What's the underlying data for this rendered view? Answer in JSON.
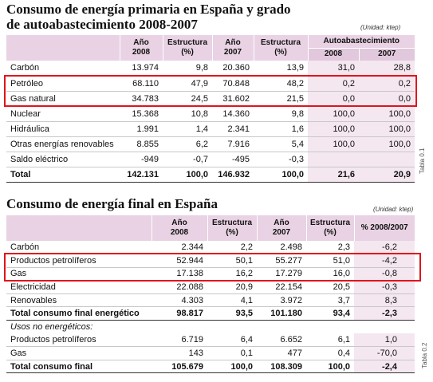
{
  "table1": {
    "title": "Consumo de energía primaria en España y grado\nde autoabastecimiento 2008-2007",
    "unit": "(Unidad: ktep)",
    "caption": "Tabla 0.1",
    "headers": [
      "Año\n2008",
      "Estructura\n(%)",
      "Año\n2007",
      "Estructura\n(%)"
    ],
    "group_header": "Autoabastecimiento",
    "group_subheaders": [
      "2008",
      "2007"
    ],
    "rows": [
      {
        "label": "Carbón",
        "cells": [
          "13.974",
          "9,8",
          "20.360",
          "13,9",
          "31,0",
          "28,8"
        ]
      },
      {
        "label": "Petróleo",
        "cells": [
          "68.110",
          "47,9",
          "70.848",
          "48,2",
          "0,2",
          "0,2"
        ]
      },
      {
        "label": "Gas natural",
        "cells": [
          "34.783",
          "24,5",
          "31.602",
          "21,5",
          "0,0",
          "0,0"
        ]
      },
      {
        "label": "Nuclear",
        "cells": [
          "15.368",
          "10,8",
          "14.360",
          "9,8",
          "100,0",
          "100,0"
        ]
      },
      {
        "label": "Hidráulica",
        "cells": [
          "1.991",
          "1,4",
          "2.341",
          "1,6",
          "100,0",
          "100,0"
        ]
      },
      {
        "label": "Otras energías renovables",
        "cells": [
          "8.855",
          "6,2",
          "7.916",
          "5,4",
          "100,0",
          "100,0"
        ]
      },
      {
        "label": "Saldo eléctrico",
        "cells": [
          "-949",
          "-0,7",
          "-495",
          "-0,3",
          null,
          null
        ]
      }
    ],
    "total": {
      "label": "Total",
      "cells": [
        "142.131",
        "100,0",
        "146.932",
        "100,0",
        "21,6",
        "20,9"
      ]
    }
  },
  "table2": {
    "title": "Consumo de energía final en España",
    "unit": "(Unidad: ktep)",
    "caption": "Tabla 0.2",
    "headers": [
      "Año\n2008",
      "Estructura\n(%)",
      "Año\n2007",
      "Estructura\n(%)",
      "% 2008/2007"
    ],
    "rows": [
      {
        "label": "Carbón",
        "cells": [
          "2.344",
          "2,2",
          "2.498",
          "2,3",
          "-6,2"
        ]
      },
      {
        "label": "Productos petrolíferos",
        "cells": [
          "52.944",
          "50,1",
          "55.277",
          "51,0",
          "-4,2"
        ]
      },
      {
        "label": "Gas",
        "cells": [
          "17.138",
          "16,2",
          "17.279",
          "16,0",
          "-0,8"
        ]
      },
      {
        "label": "Electricidad",
        "cells": [
          "22.088",
          "20,9",
          "22.154",
          "20,5",
          "-0,3"
        ]
      },
      {
        "label": "Renovables",
        "cells": [
          "4.303",
          "4,1",
          "3.972",
          "3,7",
          "8,3"
        ]
      }
    ],
    "subtotal": {
      "label": "Total consumo final energético",
      "cells": [
        "98.817",
        "93,5",
        "101.180",
        "93,4",
        "-2,3"
      ]
    },
    "section_label": "Usos no energéticos:",
    "section_rows": [
      {
        "label": "Productos petrolíferos",
        "cells": [
          "6.719",
          "6,4",
          "6.652",
          "6,1",
          "1,0"
        ]
      },
      {
        "label": "Gas",
        "cells": [
          "143",
          "0,1",
          "477",
          "0,4",
          "-70,0"
        ]
      }
    ],
    "total": {
      "label": "Total consumo final",
      "cells": [
        "105.679",
        "100,0",
        "108.309",
        "100,0",
        "-2,4"
      ]
    }
  }
}
